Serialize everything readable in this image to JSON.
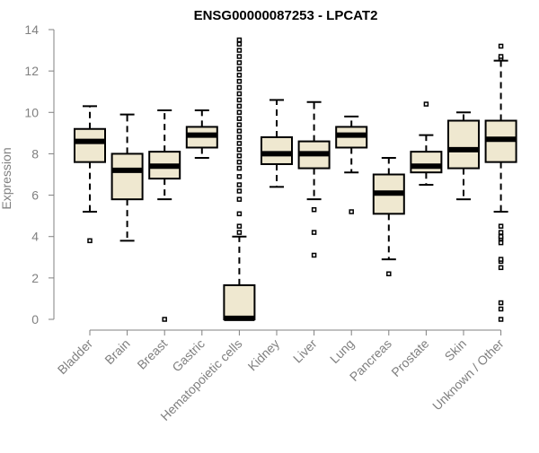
{
  "chart_data": {
    "type": "boxplot",
    "title": "ENSG00000087253 - LPCAT2",
    "ylabel": "Expression",
    "xlabel": "",
    "ylim": [
      0,
      14
    ],
    "yticks": [
      0,
      2,
      4,
      6,
      8,
      10,
      12,
      14
    ],
    "grid": false,
    "categories": [
      "Bladder",
      "Brain",
      "Breast",
      "Gastric",
      "Hematopoietic cells",
      "Kidney",
      "Liver",
      "Lung",
      "Pancreas",
      "Prostate",
      "Skin",
      "Unknown / Other"
    ],
    "boxes": [
      {
        "whisker_low": 5.2,
        "q1": 7.6,
        "median": 8.6,
        "q3": 9.2,
        "whisker_high": 10.3,
        "outliers": [
          3.8
        ]
      },
      {
        "whisker_low": 3.8,
        "q1": 5.8,
        "median": 7.2,
        "q3": 8.0,
        "whisker_high": 9.9,
        "outliers": []
      },
      {
        "whisker_low": 5.8,
        "q1": 6.8,
        "median": 7.4,
        "q3": 8.1,
        "whisker_high": 10.1,
        "outliers": [
          0.0
        ]
      },
      {
        "whisker_low": 7.8,
        "q1": 8.3,
        "median": 8.9,
        "q3": 9.3,
        "whisker_high": 10.1,
        "outliers": []
      },
      {
        "whisker_low": 0.0,
        "q1": 0.0,
        "median": 0.05,
        "q3": 1.65,
        "whisker_high": 4.0,
        "outliers": [
          4.2,
          4.5,
          5.1,
          5.8,
          6.2,
          6.5,
          6.9,
          7.3,
          7.6,
          7.9,
          8.2,
          8.5,
          8.8,
          9.1,
          9.4,
          9.7,
          10.0,
          10.3,
          10.6,
          10.9,
          11.2,
          11.5,
          11.8,
          12.1,
          12.4,
          12.7,
          13.0,
          13.3,
          13.5
        ]
      },
      {
        "whisker_low": 6.4,
        "q1": 7.5,
        "median": 8.0,
        "q3": 8.8,
        "whisker_high": 10.6,
        "outliers": []
      },
      {
        "whisker_low": 5.8,
        "q1": 7.3,
        "median": 8.0,
        "q3": 8.6,
        "whisker_high": 10.5,
        "outliers": [
          5.3,
          4.2,
          3.1
        ]
      },
      {
        "whisker_low": 7.1,
        "q1": 8.3,
        "median": 8.9,
        "q3": 9.3,
        "whisker_high": 9.8,
        "outliers": [
          5.2
        ]
      },
      {
        "whisker_low": 2.9,
        "q1": 5.1,
        "median": 6.1,
        "q3": 7.0,
        "whisker_high": 7.8,
        "outliers": [
          2.2
        ]
      },
      {
        "whisker_low": 6.5,
        "q1": 7.1,
        "median": 7.4,
        "q3": 8.1,
        "whisker_high": 8.9,
        "outliers": [
          10.4
        ]
      },
      {
        "whisker_low": 5.8,
        "q1": 7.3,
        "median": 8.2,
        "q3": 9.6,
        "whisker_high": 10.0,
        "outliers": []
      },
      {
        "whisker_low": 5.2,
        "q1": 7.6,
        "median": 8.7,
        "q3": 9.6,
        "whisker_high": 12.5,
        "outliers": [
          0.0,
          0.5,
          0.8,
          2.5,
          2.8,
          2.9,
          3.7,
          3.9,
          4.0,
          4.2,
          4.5,
          12.6,
          12.7,
          13.2
        ]
      }
    ],
    "colors": {
      "box_fill": "#efe8d0",
      "box_stroke": "#000000",
      "axis": "#808080",
      "title": "#000000"
    }
  }
}
